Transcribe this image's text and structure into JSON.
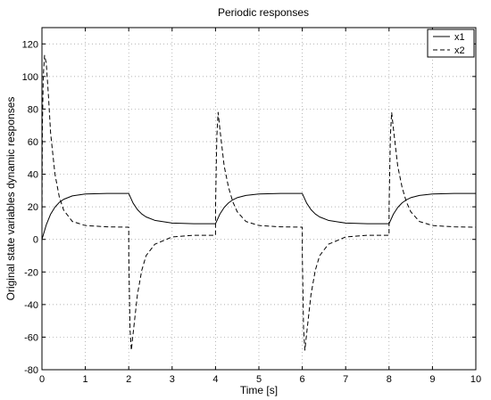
{
  "chart_data": {
    "type": "line",
    "title": "Periodic responses",
    "xlabel": "Time [s]",
    "ylabel": "Original state variables dynamic responses",
    "xlim": [
      0,
      10
    ],
    "ylim": [
      -80,
      130
    ],
    "xticks": [
      "0",
      "1",
      "2",
      "3",
      "4",
      "5",
      "6",
      "7",
      "8",
      "9",
      "10"
    ],
    "yticks": [
      "-80",
      "-60",
      "-40",
      "-20",
      "0",
      "20",
      "40",
      "60",
      "80",
      "100",
      "120"
    ],
    "grid": true,
    "legend_position": "top-right",
    "legend": [
      "x1",
      "x2"
    ],
    "series": [
      {
        "name": "x1",
        "style": "solid",
        "color": "#000000",
        "x": [
          0,
          0.1,
          0.2,
          0.3,
          0.4,
          0.5,
          0.7,
          1.0,
          1.5,
          2.0,
          2.1,
          2.2,
          2.3,
          2.4,
          2.6,
          3.0,
          3.5,
          4.0,
          4.1,
          4.2,
          4.3,
          4.4,
          4.5,
          4.7,
          5.0,
          5.5,
          6.0,
          6.1,
          6.2,
          6.3,
          6.4,
          6.6,
          7.0,
          7.5,
          8.0,
          8.1,
          8.2,
          8.3,
          8.4,
          8.5,
          8.7,
          9.0,
          9.5,
          10.0
        ],
        "y": [
          0,
          9,
          15.5,
          19.8,
          22.7,
          24.6,
          26.7,
          27.9,
          28.2,
          28.2,
          22.3,
          18.3,
          15.6,
          13.8,
          11.7,
          10.0,
          9.6,
          9.6,
          15.5,
          19.6,
          22.4,
          24.3,
          25.6,
          27.0,
          27.9,
          28.2,
          28.2,
          22.3,
          18.3,
          15.6,
          13.8,
          11.7,
          10.0,
          9.6,
          9.6,
          15.5,
          19.6,
          22.4,
          24.3,
          25.6,
          27.0,
          27.9,
          28.2,
          28.2
        ]
      },
      {
        "name": "x2",
        "style": "dashed",
        "color": "#000000",
        "x": [
          0,
          0.01,
          0.03,
          0.06,
          0.1,
          0.15,
          0.2,
          0.3,
          0.4,
          0.5,
          0.7,
          1.0,
          1.5,
          2.0,
          2.001,
          2.03,
          2.06,
          2.1,
          2.2,
          2.3,
          2.4,
          2.6,
          3.0,
          3.5,
          4.0,
          4.001,
          4.03,
          4.06,
          4.1,
          4.2,
          4.3,
          4.4,
          4.5,
          4.7,
          5.0,
          5.5,
          6.0,
          6.001,
          6.03,
          6.06,
          6.1,
          6.2,
          6.3,
          6.4,
          6.6,
          7.0,
          7.5,
          8.0,
          8.001,
          8.03,
          8.06,
          8.1,
          8.2,
          8.3,
          8.4,
          8.5,
          8.7,
          9.0,
          9.5,
          10.0
        ],
        "y": [
          10,
          70,
          100,
          113,
          108,
          88,
          65,
          40,
          26,
          18,
          11,
          8.5,
          7.7,
          7.5,
          -10,
          -55,
          -68,
          -58,
          -34,
          -19,
          -10,
          -3,
          1.5,
          2.5,
          2.5,
          20,
          63,
          78,
          68,
          45,
          32,
          23,
          17,
          11,
          8.5,
          7.7,
          7.5,
          -10,
          -55,
          -68,
          -58,
          -34,
          -19,
          -10,
          -3,
          1.5,
          2.5,
          2.5,
          20,
          63,
          78,
          68,
          45,
          32,
          23,
          17,
          11,
          8.5,
          7.7,
          7.5
        ]
      }
    ]
  }
}
